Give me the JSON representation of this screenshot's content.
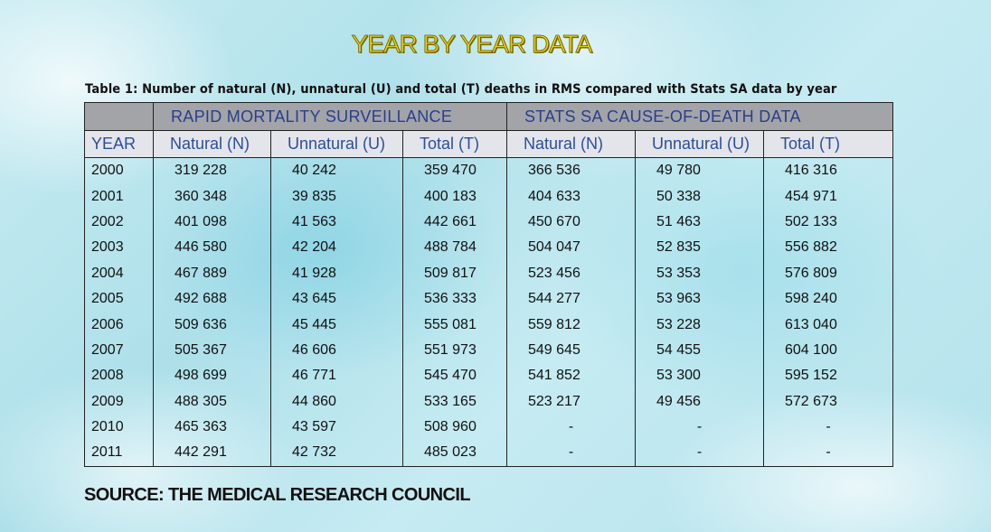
{
  "title": "YEAR BY YEAR DATA",
  "caption": "Table 1: Number of natural (N), unnatural (U) and total (T) deaths in RMS compared with Stats SA data by year",
  "groups": {
    "rms": "RAPID MORTALITY SURVEILLANCE",
    "statssa": "STATS SA CAUSE-OF-DEATH DATA"
  },
  "columns": {
    "year": "YEAR",
    "rms_natural": "Natural (N)",
    "rms_unnatural": "Unnatural (U)",
    "rms_total": "Total (T)",
    "sa_natural": "Natural (N)",
    "sa_unnatural": "Unnatural (U)",
    "sa_total": "Total (T)"
  },
  "rows": [
    [
      "2000",
      "319 228",
      "40 242",
      "359 470",
      "366 536",
      "49 780",
      "416 316"
    ],
    [
      "2001",
      "360 348",
      "39 835",
      "400 183",
      "404 633",
      "50 338",
      "454 971"
    ],
    [
      "2002",
      "401 098",
      "41 563",
      "442 661",
      "450 670",
      "51 463",
      "502 133"
    ],
    [
      "2003",
      "446 580",
      "42 204",
      "488 784",
      "504 047",
      "52 835",
      "556 882"
    ],
    [
      "2004",
      "467 889",
      "41 928",
      "509 817",
      "523 456",
      "53 353",
      "576 809"
    ],
    [
      "2005",
      "492 688",
      "43 645",
      "536 333",
      "544 277",
      "53 963",
      "598 240"
    ],
    [
      "2006",
      "509 636",
      "45 445",
      "555 081",
      "559 812",
      "53 228",
      "613 040"
    ],
    [
      "2007",
      "505 367",
      "46 606",
      "551 973",
      "549 645",
      "54 455",
      "604 100"
    ],
    [
      "2008",
      "498 699",
      "46 771",
      "545 470",
      "541 852",
      "53 300",
      "595 152"
    ],
    [
      "2009",
      "488 305",
      "44 860",
      "533 165",
      "523 217",
      "49 456",
      "572 673"
    ],
    [
      "2010",
      "465 363",
      "43 597",
      "508 960",
      "-",
      "-",
      "-"
    ],
    [
      "2011",
      "442 291",
      "42 732",
      "485 023",
      "-",
      "-",
      "-"
    ]
  ],
  "source": "SOURCE: THE MEDICAL RESEARCH COUNCIL"
}
